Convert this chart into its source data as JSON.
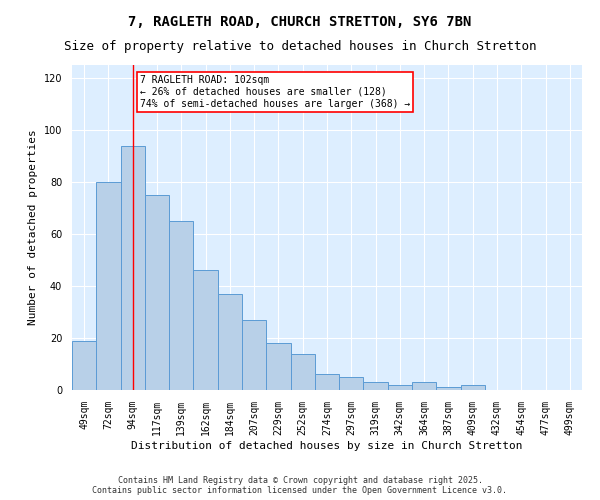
{
  "title1": "7, RAGLETH ROAD, CHURCH STRETTON, SY6 7BN",
  "title2": "Size of property relative to detached houses in Church Stretton",
  "xlabel": "Distribution of detached houses by size in Church Stretton",
  "ylabel": "Number of detached properties",
  "categories": [
    "49sqm",
    "72sqm",
    "94sqm",
    "117sqm",
    "139sqm",
    "162sqm",
    "184sqm",
    "207sqm",
    "229sqm",
    "252sqm",
    "274sqm",
    "297sqm",
    "319sqm",
    "342sqm",
    "364sqm",
    "387sqm",
    "409sqm",
    "432sqm",
    "454sqm",
    "477sqm",
    "499sqm"
  ],
  "bar_heights": [
    19,
    80,
    94,
    75,
    65,
    46,
    37,
    27,
    18,
    14,
    6,
    5,
    3,
    2,
    3,
    1,
    2,
    0,
    0,
    0,
    0
  ],
  "bar_color": "#b8d0e8",
  "bar_edge_color": "#5b9bd5",
  "background_color": "#ddeeff",
  "red_line_x": 2,
  "annotation_text": "7 RAGLETH ROAD: 102sqm\n← 26% of detached houses are smaller (128)\n74% of semi-detached houses are larger (368) →",
  "annotation_box_color": "white",
  "annotation_box_edge": "red",
  "ylim": [
    0,
    125
  ],
  "yticks": [
    0,
    20,
    40,
    60,
    80,
    100,
    120
  ],
  "footer": "Contains HM Land Registry data © Crown copyright and database right 2025.\nContains public sector information licensed under the Open Government Licence v3.0.",
  "title_fontsize": 10,
  "subtitle_fontsize": 9,
  "tick_fontsize": 7,
  "ylabel_fontsize": 8,
  "xlabel_fontsize": 8,
  "footer_fontsize": 6
}
